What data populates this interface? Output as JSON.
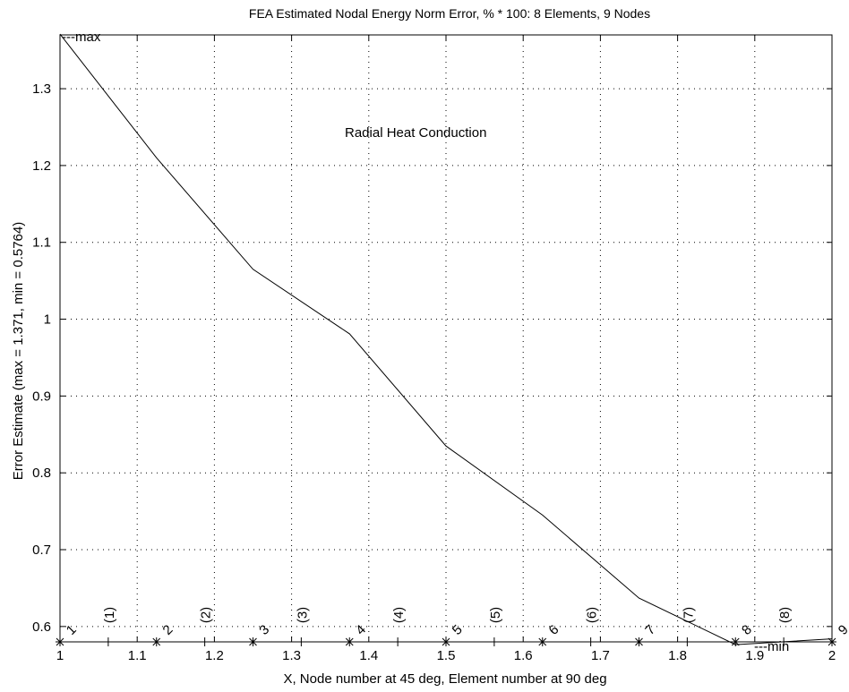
{
  "chart_data": {
    "type": "line",
    "title": "FEA Estimated Nodal Energy Norm Error, % * 100:   8 Elements, 9 Nodes",
    "xlabel": "X, Node number at 45 deg, Element number at 90 deg",
    "ylabel": "Error Estimate   (max = 1.371, min = 0.5764)",
    "annotation": "Radial  Heat Conduction",
    "max_label": "---max",
    "min_label": "---min",
    "xlim": [
      1,
      2
    ],
    "ylim": [
      0.58,
      1.37
    ],
    "grid": true,
    "x_ticks": [
      1,
      1.1,
      1.2,
      1.3,
      1.4,
      1.5,
      1.6,
      1.7,
      1.8,
      1.9,
      2
    ],
    "x_tick_labels": [
      "1",
      "1.1",
      "1.2",
      "1.3",
      "1.4",
      "1.5",
      "1.6",
      "1.7",
      "1.8",
      "1.9",
      "2"
    ],
    "y_ticks": [
      0.6,
      0.7,
      0.8,
      0.9,
      1.0,
      1.1,
      1.2,
      1.3
    ],
    "y_tick_labels": [
      "0.6",
      "0.7",
      "0.8",
      "0.9",
      "1",
      "1.1",
      "1.2",
      "1.3"
    ],
    "series": [
      {
        "x": [
          1,
          1.125,
          1.25,
          1.375,
          1.5,
          1.625,
          1.75,
          1.875,
          2
        ],
        "values": [
          1.371,
          1.21,
          1.065,
          0.981,
          0.835,
          0.745,
          0.637,
          0.5764,
          0.584
        ]
      }
    ],
    "nodes": [
      {
        "x": 1,
        "label": "1"
      },
      {
        "x": 1.125,
        "label": "2"
      },
      {
        "x": 1.25,
        "label": "3"
      },
      {
        "x": 1.375,
        "label": "4"
      },
      {
        "x": 1.5,
        "label": "5"
      },
      {
        "x": 1.625,
        "label": "6"
      },
      {
        "x": 1.75,
        "label": "7"
      },
      {
        "x": 1.875,
        "label": "8"
      },
      {
        "x": 2,
        "label": "9"
      }
    ],
    "elements": [
      {
        "x": 1.0625,
        "label": "(1)"
      },
      {
        "x": 1.1875,
        "label": "(2)"
      },
      {
        "x": 1.3125,
        "label": "(3)"
      },
      {
        "x": 1.4375,
        "label": "(4)"
      },
      {
        "x": 1.5625,
        "label": "(5)"
      },
      {
        "x": 1.6875,
        "label": "(6)"
      },
      {
        "x": 1.8125,
        "label": "(7)"
      },
      {
        "x": 1.9375,
        "label": "(8)"
      }
    ]
  }
}
